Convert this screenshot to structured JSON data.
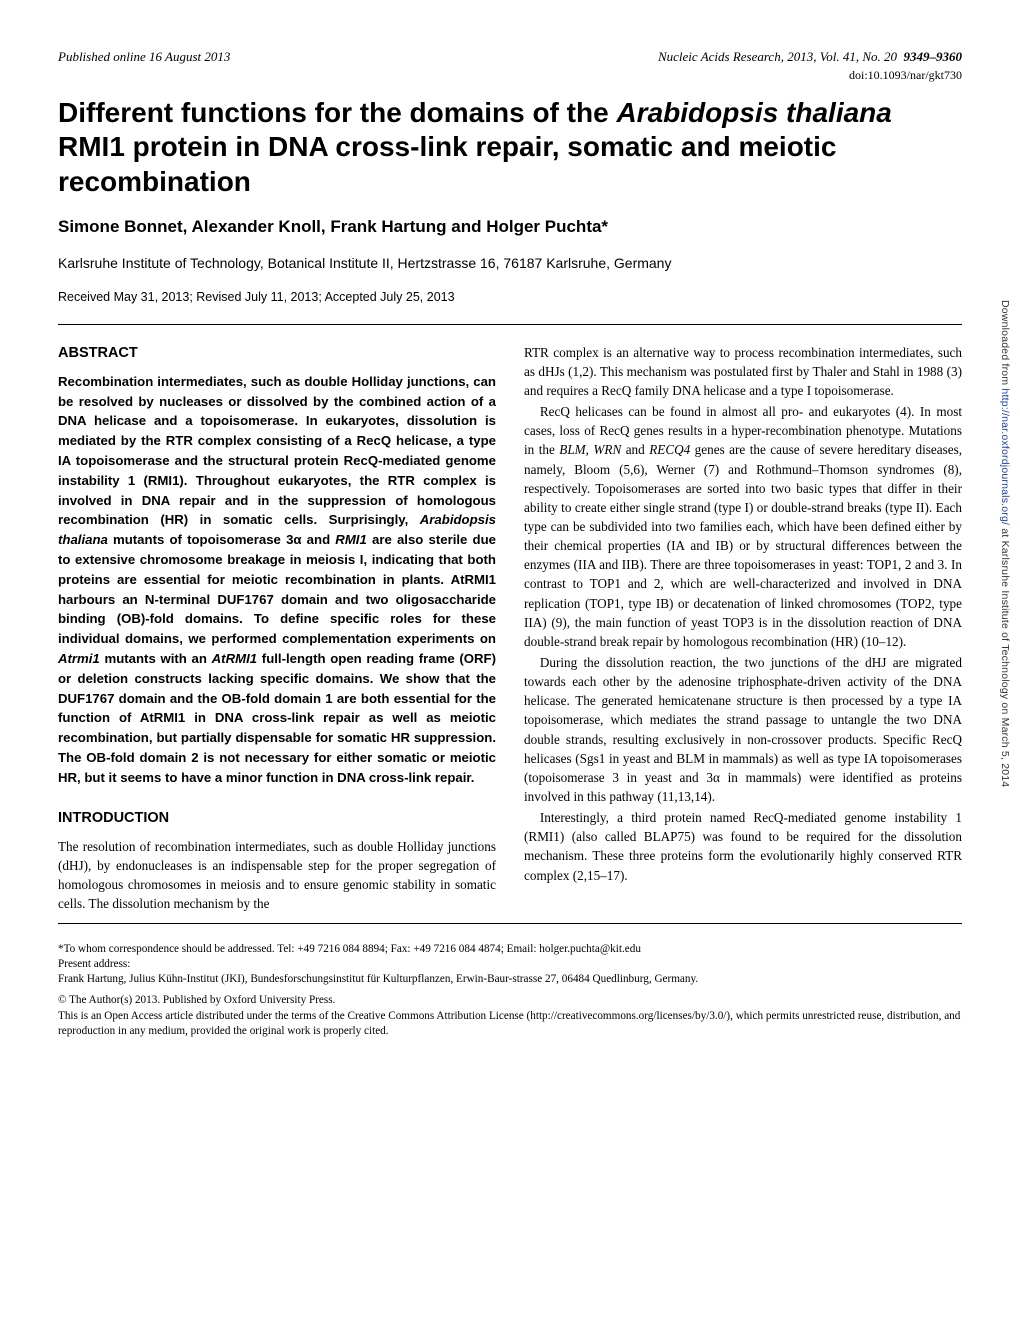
{
  "header": {
    "pub_online": "Published online 16 August 2013",
    "journal": "Nucleic Acids Research, 2013, Vol. 41, No. 20",
    "pages": "9349–9360",
    "doi": "doi:10.1093/nar/gkt730"
  },
  "title_pre": "Different functions for the domains of the ",
  "title_species": "Arabidopsis thaliana",
  "title_post": " RMI1 protein in DNA cross-link repair, somatic and meiotic recombination",
  "authors": "Simone Bonnet, Alexander Knoll, Frank Hartung and Holger Puchta*",
  "affiliation": "Karlsruhe Institute of Technology, Botanical Institute II, Hertzstrasse 16, 76187 Karlsruhe, Germany",
  "dates": "Received May 31, 2013; Revised July 11, 2013; Accepted July 25, 2013",
  "abstract_heading": "ABSTRACT",
  "abstract_html": "Recombination intermediates, such as double Holliday junctions, can be resolved by nucleases or dissolved by the combined action of a DNA helicase and a topoisomerase. In eukaryotes, dissolution is mediated by the RTR complex consisting of a RecQ helicase, a type IA topoisomerase and the structural protein RecQ-mediated genome instability 1 (RMI1). Throughout eukaryotes, the RTR complex is involved in DNA repair and in the suppression of homologous recombination (HR) in somatic cells. Surprisingly, <span class='ital'>Arabidopsis thaliana</span> mutants of topoisomerase 3α and <span class='ital'>RMI1</span> are also sterile due to extensive chromosome breakage in meiosis I, indicating that both proteins are essential for meiotic recombination in plants. AtRMI1 harbours an N-terminal DUF1767 domain and two oligosaccharide binding (OB)-fold domains. To define specific roles for these individual domains, we performed complementation experiments on <span class='ital'>Atrmi1</span> mutants with an <span class='ital'>AtRMI1</span> full-length open reading frame (ORF) or deletion constructs lacking specific domains. We show that the DUF1767 domain and the OB-fold domain 1 are both essential for the function of AtRMI1 in DNA cross-link repair as well as meiotic recombination, but partially dispensable for somatic HR suppression. The OB-fold domain 2 is not necessary for either somatic or meiotic HR, but it seems to have a minor function in DNA cross-link repair.",
  "intro_heading": "INTRODUCTION",
  "intro_p1": "The resolution of recombination intermediates, such as double Holliday junctions (dHJ), by endonucleases is an indispensable step for the proper segregation of homologous chromosomes in meiosis and to ensure genomic stability in somatic cells. The dissolution mechanism by the",
  "right_p1": "RTR complex is an alternative way to process recombination intermediates, such as dHJs (1,2). This mechanism was postulated first by Thaler and Stahl in 1988 (3) and requires a RecQ family DNA helicase and a type I topoisomerase.",
  "right_p2_html": "RecQ helicases can be found in almost all pro- and eukaryotes (4). In most cases, loss of RecQ genes results in a hyper-recombination phenotype. Mutations in the <span class='ital'>BLM</span>, <span class='ital'>WRN</span> and <span class='ital'>RECQ4</span> genes are the cause of severe hereditary diseases, namely, Bloom (5,6), Werner (7) and Rothmund–Thomson syndromes (8), respectively. Topoisomerases are sorted into two basic types that differ in their ability to create either single strand (type I) or double-strand breaks (type II). Each type can be subdivided into two families each, which have been defined either by their chemical properties (IA and IB) or by structural differences between the enzymes (IIA and IIB). There are three topoisomerases in yeast: TOP1, 2 and 3. In contrast to TOP1 and 2, which are well-characterized and involved in DNA replication (TOP1, type IB) or decatenation of linked chromosomes (TOP2, type IIA) (9), the main function of yeast TOP3 is in the dissolution reaction of DNA double-strand break repair by homologous recombination (HR) (10–12).",
  "right_p3": "During the dissolution reaction, the two junctions of the dHJ are migrated towards each other by the adenosine triphosphate-driven activity of the DNA helicase. The generated hemicatenane structure is then processed by a type IA topoisomerase, which mediates the strand passage to untangle the two DNA double strands, resulting exclusively in non-crossover products. Specific RecQ helicases (Sgs1 in yeast and BLM in mammals) as well as type IA topoisomerases (topoisomerase 3 in yeast and 3α in mammals) were identified as proteins involved in this pathway (11,13,14).",
  "right_p4": "Interestingly, a third protein named RecQ-mediated genome instability 1 (RMI1) (also called BLAP75) was found to be required for the dissolution mechanism. These three proteins form the evolutionarily highly conserved RTR complex (2,15–17).",
  "footer": {
    "corr": "*To whom correspondence should be addressed. Tel: +49 7216 084 8894; Fax: +49 7216 084 4874; Email: holger.puchta@kit.edu",
    "present_label": "Present address:",
    "present": "Frank Hartung, Julius Kühn-Institut (JKI), Bundesforschungsinstitut für Kulturpflanzen, Erwin-Baur-strasse 27, 06484 Quedlinburg, Germany.",
    "copyright1": "© The Author(s) 2013. Published by Oxford University Press.",
    "copyright2": "This is an Open Access article distributed under the terms of the Creative Commons Attribution License (http://creativecommons.org/licenses/by/3.0/), which permits unrestricted reuse, distribution, and reproduction in any medium, provided the original work is properly cited."
  },
  "sidebar_pre": "Downloaded from ",
  "sidebar_link": "http://nar.oxfordjournals.org/",
  "sidebar_post": " at Karlsruhe Institute of Technology on March 5, 2014"
}
